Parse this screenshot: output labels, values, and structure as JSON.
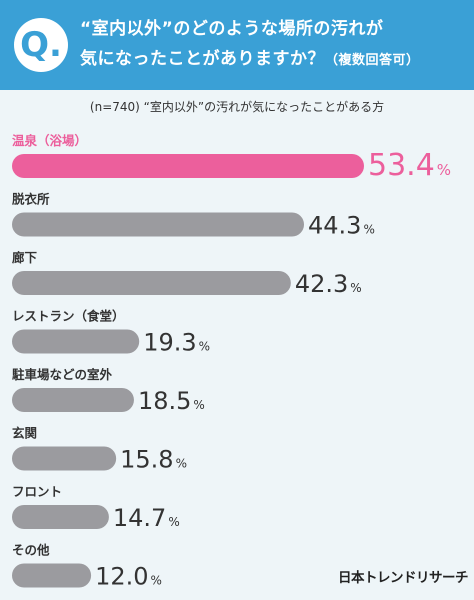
{
  "header": {
    "q_mark": "Q.",
    "question_line1": "“室内以外”のどのような場所の汚れが",
    "question_line2": "気になったことがありますか？",
    "question_note": "（複数回答可）"
  },
  "subtitle": "(n=740) “室内以外”の汚れが気になったことがある方",
  "brand": "日本トレンドリサーチ",
  "colors": {
    "header_bg": "#3aa0d6",
    "highlight": "#ec5f9c",
    "bar": "#9b9b9f",
    "text": "#333333"
  },
  "chart_data": {
    "type": "bar",
    "orientation": "horizontal",
    "unit": "%",
    "categories": [
      "温泉（浴場）",
      "脱衣所",
      "廊下",
      "レストラン（食堂）",
      "駐車場などの室外",
      "玄関",
      "フロント",
      "その他"
    ],
    "values": [
      53.4,
      44.3,
      42.3,
      19.3,
      18.5,
      15.8,
      14.7,
      12.0
    ],
    "value_labels": [
      "53.4",
      "44.3",
      "42.3",
      "19.3",
      "18.5",
      "15.8",
      "14.7",
      "12.0"
    ],
    "highlight_index": 0,
    "title": "",
    "xlabel": "",
    "ylabel": "",
    "xlim": [
      0,
      53.4
    ]
  }
}
